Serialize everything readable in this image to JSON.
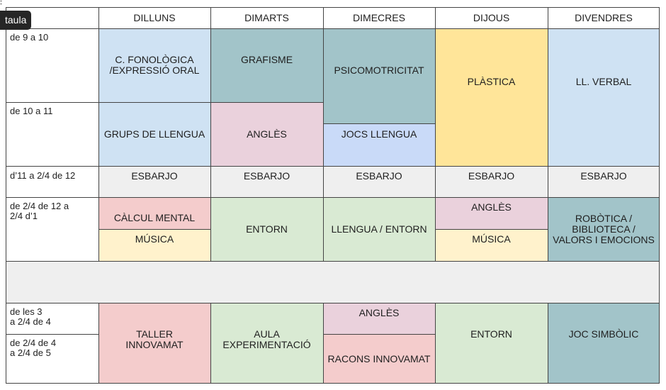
{
  "tag_label": "taula",
  "colors": {
    "blue": "#cfe2f3",
    "teal": "#a2c4c9",
    "pink": "#ead1dc",
    "yellow": "#ffe599",
    "periwinkle": "#c9daf8",
    "grey": "#efefef",
    "salmon": "#f4cccc",
    "cream": "#fff2cc",
    "green": "#d9ead3",
    "border": "#444444"
  },
  "headers": {
    "mon": "DILLUNS",
    "tue": "DIMARTS",
    "wed": "DIMECRES",
    "thu": "DIJOUS",
    "fri": "DIVENDRES"
  },
  "times": {
    "t1": "de 9 a 10",
    "t2": "de 10 a 11",
    "t3": "d’11 a 2/4 de 12",
    "t4": "de 2/4 de 12 a\n2/4 d’1",
    "t5": "de les 3\na 2/4 de 4",
    "t6": "de 2/4 de 4\na 2/4 de 5"
  },
  "subjects": {
    "mon_1": "C. FONOLÒGICA\n/EXPRESSIÓ ORAL",
    "mon_2": "GRUPS DE LLENGUA",
    "tue_1": "GRAFISME",
    "tue_2": "ANGLÈS",
    "wed_1": "PSICOMOTRICITAT",
    "wed_2": "JOCS LLENGUA",
    "thu_1": "PLÀSTICA",
    "fri_1": "LL. VERBAL",
    "break_mon": "ESBARJO",
    "break_tue": "ESBARJO",
    "break_wed": "ESBARJO",
    "break_thu": "ESBARJO",
    "break_fri": "ESBARJO",
    "mon_3a": "CÀLCUL MENTAL",
    "mon_3b": "MÚSICA",
    "tue_3": "ENTORN",
    "wed_3": "LLENGUA / ENTORN",
    "thu_3a": "ANGLÈS",
    "thu_3b": "MÚSICA",
    "fri_3": "ROBÒTICA /\nBIBLIOTECA /\nVALORS I EMOCIONS",
    "mon_4": "TALLER\nINNOVAMAT",
    "tue_4": "AULA\nEXPERIMENTACIÓ",
    "wed_4a": "ANGLÈS",
    "wed_4b": "RACONS INNOVAMAT",
    "thu_4": "ENTORN",
    "fri_4": "JOC SIMBÒLIC"
  }
}
